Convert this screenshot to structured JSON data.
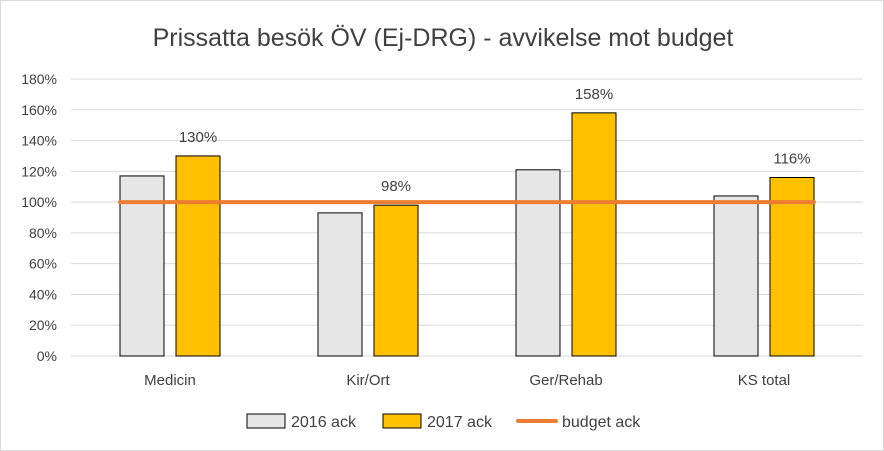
{
  "chart_data": {
    "type": "bar",
    "title": "Prissatta besök ÖV (Ej-DRG) - avvikelse mot budget",
    "categories": [
      "Medicin",
      "Kir/Ort",
      "Ger/Rehab",
      "KS total"
    ],
    "series": [
      {
        "name": "2016 ack",
        "values": [
          117,
          93,
          121,
          104
        ],
        "color": "#e6e6e6",
        "data_labels": null
      },
      {
        "name": "2017 ack",
        "values": [
          130,
          98,
          158,
          116
        ],
        "color": "#ffc000",
        "data_labels": [
          "130%",
          "98%",
          "158%",
          "116%"
        ]
      }
    ],
    "lines": [
      {
        "name": "budget ack",
        "value": 100,
        "color": "#ed7d31"
      }
    ],
    "y_ticks": [
      0,
      20,
      40,
      60,
      80,
      100,
      120,
      140,
      160,
      180
    ],
    "y_tick_labels": [
      "0%",
      "20%",
      "40%",
      "60%",
      "80%",
      "100%",
      "120%",
      "140%",
      "160%",
      "180%"
    ],
    "ylim": [
      0,
      180
    ],
    "grid": true,
    "legend_position": "bottom",
    "gridline_color": "#d9d9d9",
    "bar_stroke_color": "#000000"
  }
}
